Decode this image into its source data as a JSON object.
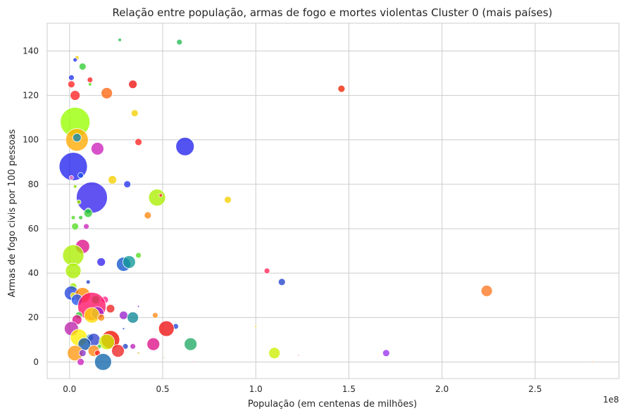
{
  "chart_data": {
    "type": "scatter",
    "title": "Relação entre população, armas de fogo e mortes violentas Cluster 0 (mais países)",
    "xlabel": "População (em centenas de milhões)",
    "ylabel": "Armas de fogo civis por 100 pessoas",
    "offset_text": "1e8",
    "xlim": [
      -12000000,
      295000000
    ],
    "ylim": [
      -7.5,
      152.5
    ],
    "xticks": [
      0,
      50000000,
      100000000,
      150000000,
      200000000,
      250000000
    ],
    "xtick_labels": [
      "0.0",
      "0.5",
      "1.0",
      "1.5",
      "2.0",
      "2.5"
    ],
    "yticks": [
      0,
      20,
      40,
      60,
      80,
      100,
      120,
      140
    ],
    "ytick_labels": [
      "0",
      "20",
      "40",
      "60",
      "80",
      "100",
      "120",
      "140"
    ],
    "grid": true,
    "size_encoding": "mortes violentas",
    "points": [
      {
        "x": 27000000,
        "y": 145,
        "r": 2.5,
        "color": "#22bb55"
      },
      {
        "x": 59000000,
        "y": 144,
        "r": 4,
        "color": "#22bb55"
      },
      {
        "x": 4000000,
        "y": 137,
        "r": 3,
        "color": "#f5d000"
      },
      {
        "x": 3000000,
        "y": 136,
        "r": 3,
        "color": "#2233ee"
      },
      {
        "x": 7000000,
        "y": 133,
        "r": 5,
        "color": "#33cc33"
      },
      {
        "x": 1000000,
        "y": 128,
        "r": 4,
        "color": "#2233ee"
      },
      {
        "x": 11000000,
        "y": 127,
        "r": 4,
        "color": "#ff2222"
      },
      {
        "x": 1000000,
        "y": 125,
        "r": 5,
        "color": "#ff2222"
      },
      {
        "x": 11000000,
        "y": 125,
        "r": 2.5,
        "color": "#55dd22"
      },
      {
        "x": 34000000,
        "y": 125,
        "r": 6,
        "color": "#ee1111"
      },
      {
        "x": 146000000,
        "y": 123,
        "r": 5,
        "color": "#ee2200"
      },
      {
        "x": 20000000,
        "y": 121,
        "r": 8,
        "color": "#ff6611"
      },
      {
        "x": 3000000,
        "y": 120,
        "r": 7,
        "color": "#ff2222"
      },
      {
        "x": 35000000,
        "y": 112,
        "r": 5,
        "color": "#f5d000"
      },
      {
        "x": 3000000,
        "y": 108,
        "r": 21,
        "color": "#99ff00"
      },
      {
        "x": 4000000,
        "y": 100,
        "r": 16,
        "color": "#ffaa00"
      },
      {
        "x": 4000000,
        "y": 101,
        "r": 6,
        "color": "#1188aa"
      },
      {
        "x": 37000000,
        "y": 99,
        "r": 5,
        "color": "#ff2222"
      },
      {
        "x": 62000000,
        "y": 97,
        "r": 13,
        "color": "#2222ee"
      },
      {
        "x": 15000000,
        "y": 96,
        "r": 9,
        "color": "#cc22bb"
      },
      {
        "x": 2000000,
        "y": 88,
        "r": 20,
        "color": "#2222ee"
      },
      {
        "x": 6000000,
        "y": 84,
        "r": 4,
        "color": "#2255ee"
      },
      {
        "x": 1000000,
        "y": 83,
        "r": 3,
        "color": "#ff77bb"
      },
      {
        "x": 23000000,
        "y": 82,
        "r": 6,
        "color": "#f5d000"
      },
      {
        "x": 31000000,
        "y": 80,
        "r": 5,
        "color": "#2233ee"
      },
      {
        "x": 3000000,
        "y": 79,
        "r": 2.5,
        "color": "#88dd00"
      },
      {
        "x": 47000000,
        "y": 74,
        "r": 12,
        "color": "#aaee00"
      },
      {
        "x": 12000000,
        "y": 74,
        "r": 22,
        "color": "#3322ee"
      },
      {
        "x": 49000000,
        "y": 75,
        "r": 2.5,
        "color": "#ff2222"
      },
      {
        "x": 85000000,
        "y": 73,
        "r": 5,
        "color": "#f5d000"
      },
      {
        "x": 5000000,
        "y": 72,
        "r": 3,
        "color": "#aaee00"
      },
      {
        "x": 10000000,
        "y": 68,
        "r": 4,
        "color": "#1188aa"
      },
      {
        "x": 10000000,
        "y": 67,
        "r": 6,
        "color": "#33cc33"
      },
      {
        "x": 42000000,
        "y": 66,
        "r": 5,
        "color": "#ff8811"
      },
      {
        "x": 2000000,
        "y": 65,
        "r": 3,
        "color": "#55dd22"
      },
      {
        "x": 6000000,
        "y": 65,
        "r": 3,
        "color": "#33cc33"
      },
      {
        "x": 9000000,
        "y": 61,
        "r": 4,
        "color": "#cc22bb"
      },
      {
        "x": 3000000,
        "y": 61,
        "r": 5,
        "color": "#55dd22"
      },
      {
        "x": 7000000,
        "y": 52,
        "r": 10,
        "color": "#dd1188"
      },
      {
        "x": 2000000,
        "y": 48,
        "r": 15,
        "color": "#aaee00"
      },
      {
        "x": 37000000,
        "y": 48,
        "r": 4,
        "color": "#55dd22"
      },
      {
        "x": 17000000,
        "y": 45,
        "r": 6,
        "color": "#3322ee"
      },
      {
        "x": 29000000,
        "y": 44,
        "r": 10,
        "color": "#1155cc"
      },
      {
        "x": 32000000,
        "y": 45,
        "r": 9,
        "color": "#119999"
      },
      {
        "x": 2000000,
        "y": 41,
        "r": 11,
        "color": "#aaee00"
      },
      {
        "x": 106000000,
        "y": 41,
        "r": 4,
        "color": "#ff2255"
      },
      {
        "x": 114000000,
        "y": 36,
        "r": 5,
        "color": "#2244cc"
      },
      {
        "x": 10000000,
        "y": 36,
        "r": 3,
        "color": "#2244cc"
      },
      {
        "x": 2000000,
        "y": 34,
        "r": 5,
        "color": "#99ee00"
      },
      {
        "x": 224000000,
        "y": 32,
        "r": 8,
        "color": "#ff7722"
      },
      {
        "x": 1000000,
        "y": 31,
        "r": 10,
        "color": "#2244dd"
      },
      {
        "x": 7000000,
        "y": 30,
        "r": 11,
        "color": "#ff8800"
      },
      {
        "x": 2000000,
        "y": 30,
        "r": 4,
        "color": "#ffee00"
      },
      {
        "x": 4000000,
        "y": 28,
        "r": 8,
        "color": "#2255ee"
      },
      {
        "x": 14000000,
        "y": 28,
        "r": 6,
        "color": "#33cc33"
      },
      {
        "x": 19000000,
        "y": 28,
        "r": 5,
        "color": "#ff2288"
      },
      {
        "x": 18000000,
        "y": 26,
        "r": 3,
        "color": "#ffffff"
      },
      {
        "x": 37000000,
        "y": 25,
        "r": 1.5,
        "color": "#9933cc"
      },
      {
        "x": 12000000,
        "y": 25,
        "r": 20,
        "color": "#ff1166"
      },
      {
        "x": 22000000,
        "y": 24,
        "r": 6,
        "color": "#ee2222"
      },
      {
        "x": 15000000,
        "y": 22,
        "r": 9,
        "color": "#9922cc"
      },
      {
        "x": 5000000,
        "y": 21,
        "r": 5,
        "color": "#33cc33"
      },
      {
        "x": 12000000,
        "y": 21,
        "r": 11,
        "color": "#ffdd00"
      },
      {
        "x": 29000000,
        "y": 21,
        "r": 6,
        "color": "#9922cc"
      },
      {
        "x": 46000000,
        "y": 21,
        "r": 4,
        "color": "#ff8811"
      },
      {
        "x": 34000000,
        "y": 20,
        "r": 8,
        "color": "#118899"
      },
      {
        "x": 17000000,
        "y": 20,
        "r": 5,
        "color": "#ff8811"
      },
      {
        "x": 4000000,
        "y": 19,
        "r": 7,
        "color": "#dd1188"
      },
      {
        "x": 100000000,
        "y": 16,
        "r": 1.5,
        "color": "#f5d000"
      },
      {
        "x": 57000000,
        "y": 16,
        "r": 4,
        "color": "#2244dd"
      },
      {
        "x": 52000000,
        "y": 15,
        "r": 11,
        "color": "#ee1111"
      },
      {
        "x": 29000000,
        "y": 15,
        "r": 1.5,
        "color": "#2244dd"
      },
      {
        "x": 1000000,
        "y": 15,
        "r": 10,
        "color": "#bb22aa"
      },
      {
        "x": 5000000,
        "y": 11,
        "r": 12,
        "color": "#ffee00"
      },
      {
        "x": 11000000,
        "y": 11,
        "r": 5,
        "color": "#1188aa"
      },
      {
        "x": 13000000,
        "y": 10,
        "r": 9,
        "color": "#3344cc"
      },
      {
        "x": 22000000,
        "y": 10,
        "r": 13,
        "color": "#ee1100"
      },
      {
        "x": 20000000,
        "y": 9,
        "r": 11,
        "color": "#ccee00"
      },
      {
        "x": 8000000,
        "y": 8,
        "r": 9,
        "color": "#1155aa"
      },
      {
        "x": 45000000,
        "y": 8,
        "r": 9,
        "color": "#dd1188"
      },
      {
        "x": 65000000,
        "y": 8,
        "r": 9,
        "color": "#22aa66"
      },
      {
        "x": 30000000,
        "y": 7,
        "r": 4,
        "color": "#2244cc"
      },
      {
        "x": 34000000,
        "y": 7,
        "r": 4,
        "color": "#bb22bb"
      },
      {
        "x": 16000000,
        "y": 7,
        "r": 3,
        "color": "#33cc33"
      },
      {
        "x": 26000000,
        "y": 5,
        "r": 9,
        "color": "#ee2222"
      },
      {
        "x": 13000000,
        "y": 5,
        "r": 8,
        "color": "#ff8811"
      },
      {
        "x": 3000000,
        "y": 4,
        "r": 11,
        "color": "#ff9911"
      },
      {
        "x": 110000000,
        "y": 4,
        "r": 8,
        "color": "#ccee00"
      },
      {
        "x": 170000000,
        "y": 4,
        "r": 5,
        "color": "#9933ee"
      },
      {
        "x": 7000000,
        "y": 4,
        "r": 5,
        "color": "#8833cc"
      },
      {
        "x": 15000000,
        "y": 4,
        "r": 4,
        "color": "#ff2222"
      },
      {
        "x": 37000000,
        "y": 4,
        "r": 1.5,
        "color": "#ddbb00"
      },
      {
        "x": 51000000,
        "y": 2,
        "r": 1,
        "color": "#88cc22"
      },
      {
        "x": 123000000,
        "y": 3,
        "r": 1,
        "color": "#ff4444"
      },
      {
        "x": 18000000,
        "y": 0,
        "r": 12,
        "color": "#1166aa"
      },
      {
        "x": 6000000,
        "y": 0,
        "r": 5,
        "color": "#cc22bb"
      },
      {
        "x": 67000000,
        "y": 0,
        "r": 1,
        "color": "#ff2222"
      },
      {
        "x": 281000000,
        "y": 0,
        "r": 1,
        "color": "#ff6600"
      }
    ]
  }
}
